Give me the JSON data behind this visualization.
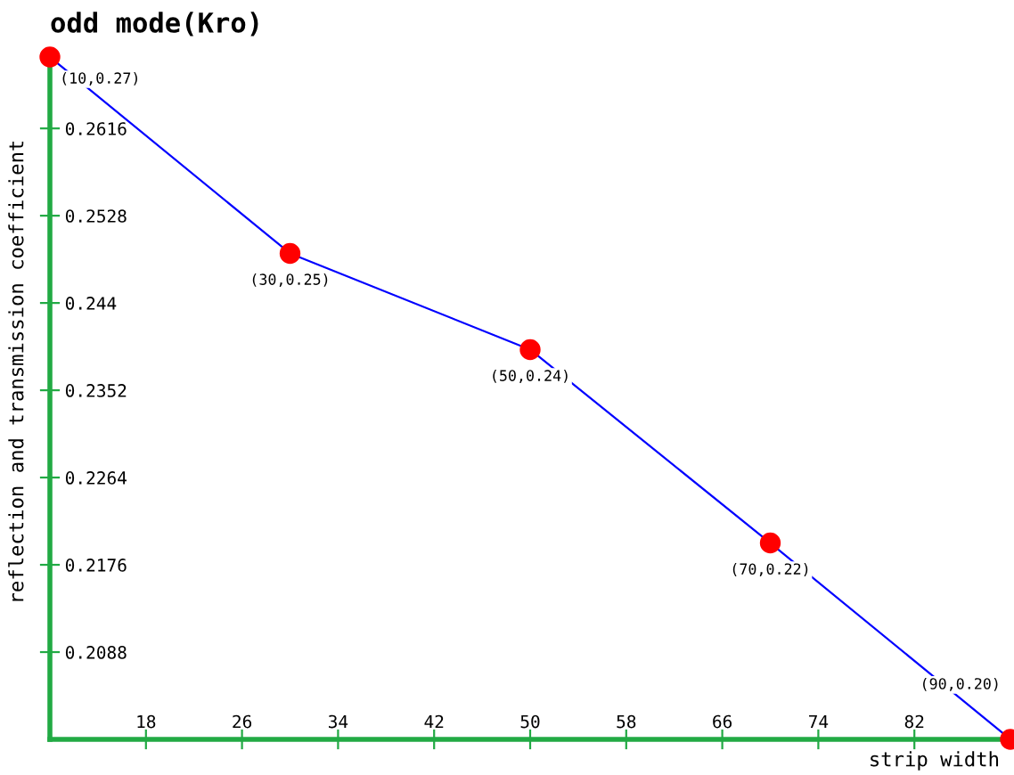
{
  "chart_data": {
    "type": "line",
    "title": "odd mode(Kro)",
    "xlabel": "strip width",
    "ylabel": "reflection and transmission coefficient",
    "x": [
      10,
      30,
      50,
      70,
      90
    ],
    "series": [
      {
        "color": "#0000ff",
        "values": [
          0.2688,
          0.249,
          0.2393,
          0.2198,
          0.2
        ],
        "value_labels": [
          "(10,0.27)",
          "(30,0.25)",
          "(50,0.24)",
          "(70,0.22)",
          "(90,0.20)"
        ]
      }
    ],
    "marker": "circle",
    "line_style": "solid",
    "xlim": [
      10,
      90
    ],
    "ylim": [
      0.2,
      0.2688
    ],
    "xticks": [
      18,
      26,
      34,
      42,
      50,
      58,
      66,
      74,
      82
    ],
    "yticks": [
      0.2088,
      0.2176,
      0.2264,
      0.2352,
      0.244,
      0.2528,
      0.2616
    ],
    "grid": false,
    "legend": false
  }
}
